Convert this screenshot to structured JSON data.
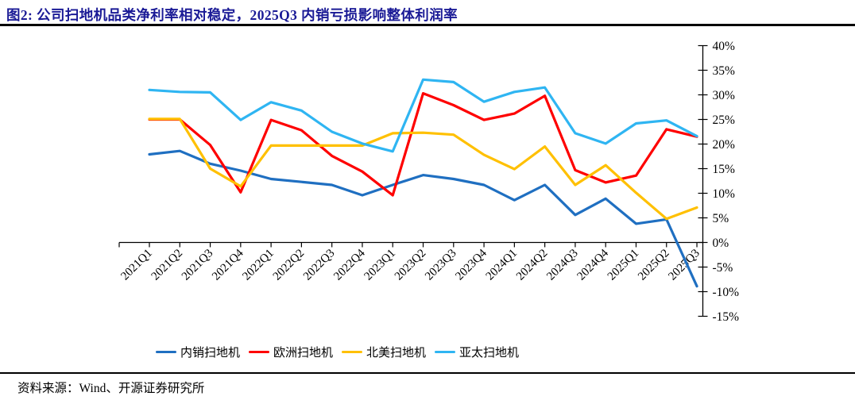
{
  "header": {
    "title": "图2:  公司扫地机品类净利率相对稳定，2025Q3 内销亏损影响整体利润率"
  },
  "footer": {
    "source": "资料来源：Wind、开源证券研究所"
  },
  "chart_data": {
    "type": "line",
    "title": "",
    "categories": [
      "2021Q1",
      "2021Q2",
      "2021Q3",
      "2021Q4",
      "2022Q1",
      "2022Q2",
      "2022Q3",
      "2022Q4",
      "2023Q1",
      "2023Q2",
      "2023Q3",
      "2023Q4",
      "2024Q1",
      "2024Q2",
      "2024Q3",
      "2024Q4",
      "2025Q1",
      "2025Q2",
      "2025Q3"
    ],
    "series": [
      {
        "name": "内销扫地机",
        "color": "#1f6fc1",
        "values": [
          17.9,
          18.6,
          16.0,
          14.6,
          12.9,
          12.3,
          11.7,
          9.6,
          11.7,
          13.7,
          12.9,
          11.7,
          8.6,
          11.7,
          5.6,
          8.9,
          3.8,
          4.7,
          -8.9
        ]
      },
      {
        "name": "欧洲扫地机",
        "color": "#fe0000",
        "values": [
          25.0,
          25.0,
          19.8,
          10.2,
          24.9,
          22.8,
          17.6,
          14.4,
          9.6,
          30.3,
          27.9,
          24.9,
          26.2,
          29.8,
          14.7,
          12.2,
          13.6,
          23.0,
          21.5
        ]
      },
      {
        "name": "北美扫地机",
        "color": "#ffc000",
        "values": [
          25.1,
          25.1,
          15.0,
          11.4,
          19.7,
          19.7,
          19.7,
          19.7,
          22.2,
          22.3,
          21.9,
          17.8,
          14.9,
          19.5,
          11.7,
          15.7,
          10.1,
          4.8,
          7.1
        ]
      },
      {
        "name": "亚太扫地机",
        "color": "#2fb5f2",
        "values": [
          31.0,
          30.6,
          30.5,
          24.9,
          28.5,
          26.8,
          22.5,
          20.1,
          18.5,
          33.1,
          32.6,
          28.6,
          30.6,
          31.5,
          22.2,
          20.1,
          24.2,
          24.8,
          21.6
        ]
      }
    ],
    "xlabel": "",
    "ylabel": "",
    "ylim": [
      -15,
      40
    ],
    "ytick_step": 5,
    "ytick_labels": [
      "40%",
      "35%",
      "30%",
      "25%",
      "20%",
      "15%",
      "10%",
      "5%",
      "0%",
      "-5%",
      "-10%",
      "-15%"
    ],
    "yaxis_side": "right",
    "xtick_rotation": -45,
    "grid": false,
    "legend_position": "bottom"
  }
}
